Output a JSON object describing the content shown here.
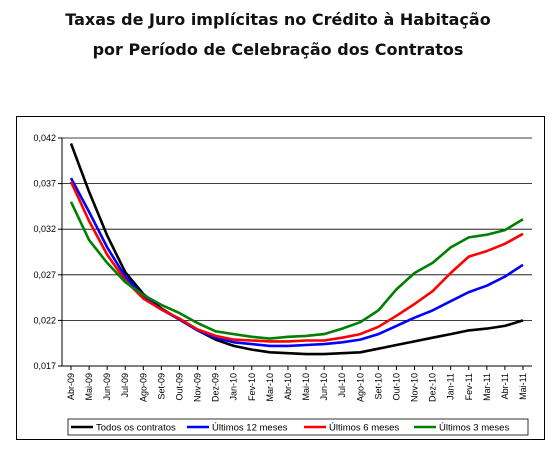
{
  "chart_data": {
    "type": "line",
    "title": "Taxas de Juro implícitas no Crédito à Habitação",
    "subtitle": "por Período de Celebração dos Contratos",
    "xlabel": "",
    "ylabel": "",
    "ylim": [
      0.017,
      0.042
    ],
    "y_ticks": [
      "0,042",
      "0,037",
      "0,032",
      "0,027",
      "0,022",
      "0,017"
    ],
    "grid": "horizontal",
    "legend_position": "bottom",
    "categories": [
      "Abr-09",
      "Mai-09",
      "Jun-09",
      "Jul-09",
      "Ago-09",
      "Set-09",
      "Out-09",
      "Nov-09",
      "Dez-09",
      "Jan-10",
      "Fev-10",
      "Mar-10",
      "Abr-10",
      "Mai-10",
      "Jun-10",
      "Jul-10",
      "Ago-10",
      "Set-10",
      "Out-10",
      "Nov-10",
      "Dez-10",
      "Jan-11",
      "Fev-11",
      "Mar-11",
      "Abr-11",
      "Mai-11"
    ],
    "x_tick_labels": [
      "Abr-09",
      "Mai-09",
      "Jun-09",
      "Jul-09",
      "Ago-09",
      "Set-09",
      "Out-09",
      "Nov-09",
      "Dez-09",
      "Jan-10",
      "Fev-10",
      "Mar-10",
      "Abr-10",
      "Mai-10",
      "Jun-10",
      "Jul-10",
      "Ago-10",
      "Set-10",
      "Out-10",
      "Nov-10",
      "Dez-10",
      "Jan-11",
      "Fev-11",
      "Mar-11",
      "Abr-11",
      "Mai-11"
    ],
    "series": [
      {
        "name": "Todos os contratos",
        "color": "#000000",
        "values": [
          0.0414,
          0.0361,
          0.0313,
          0.0273,
          0.0249,
          0.0233,
          0.0221,
          0.0209,
          0.0199,
          0.0192,
          0.0188,
          0.0185,
          0.0184,
          0.0183,
          0.0183,
          0.0184,
          0.0185,
          0.0189,
          0.0193,
          0.0197,
          0.0201,
          0.0205,
          0.0209,
          0.0211,
          0.0214,
          0.022
        ]
      },
      {
        "name": "Últimos 12 meses",
        "color": "#0000ff",
        "values": [
          0.0376,
          0.0339,
          0.03,
          0.0268,
          0.0247,
          0.0232,
          0.0221,
          0.0209,
          0.0201,
          0.0196,
          0.0194,
          0.0192,
          0.0192,
          0.0193,
          0.0194,
          0.0196,
          0.0199,
          0.0205,
          0.0214,
          0.0223,
          0.0231,
          0.0241,
          0.0251,
          0.0258,
          0.0268,
          0.0281
        ]
      },
      {
        "name": "Últimos 6 meses",
        "color": "#ff0000",
        "values": [
          0.0372,
          0.0329,
          0.0292,
          0.0264,
          0.0244,
          0.0232,
          0.0222,
          0.021,
          0.0203,
          0.0199,
          0.0198,
          0.0197,
          0.0197,
          0.0198,
          0.0198,
          0.0201,
          0.0205,
          0.0213,
          0.0225,
          0.0238,
          0.0252,
          0.0272,
          0.029,
          0.0296,
          0.0304,
          0.0315
        ]
      },
      {
        "name": "Últimos 3 meses",
        "color": "#008000",
        "values": [
          0.035,
          0.0308,
          0.0283,
          0.0262,
          0.0248,
          0.0237,
          0.0228,
          0.0217,
          0.0208,
          0.0205,
          0.0202,
          0.02,
          0.0202,
          0.0203,
          0.0205,
          0.0211,
          0.0218,
          0.0231,
          0.0254,
          0.0272,
          0.0283,
          0.03,
          0.0311,
          0.0314,
          0.0319,
          0.0331
        ]
      }
    ]
  }
}
